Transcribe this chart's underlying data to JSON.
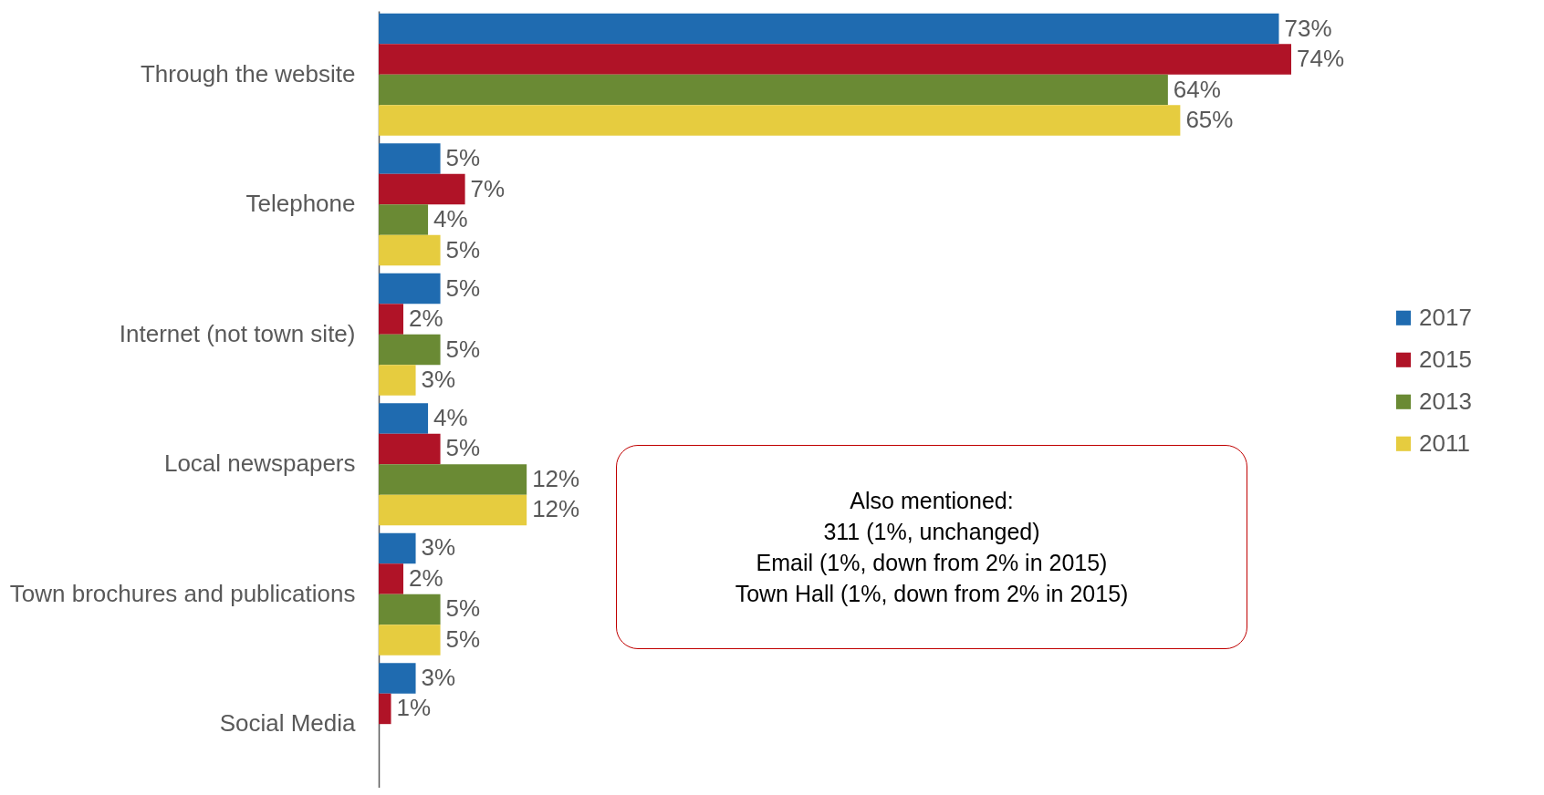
{
  "chart_data": {
    "type": "bar",
    "orientation": "horizontal",
    "categories": [
      "Through the website",
      "Telephone",
      "Internet (not town site)",
      "Local newspapers",
      "Town brochures and publications",
      "Social Media"
    ],
    "series": [
      {
        "name": "2017",
        "color": "#1f6bb0",
        "values": [
          73,
          5,
          5,
          4,
          3,
          3
        ],
        "value_labels": [
          "73%",
          "5%",
          "5%",
          "4%",
          "3%",
          "3%"
        ]
      },
      {
        "name": "2015",
        "color": "#b01327",
        "values": [
          74,
          7,
          2,
          5,
          2,
          1
        ],
        "value_labels": [
          "74%",
          "7%",
          "2%",
          "5%",
          "2%",
          "1%"
        ]
      },
      {
        "name": "2013",
        "color": "#6a8a34",
        "values": [
          64,
          4,
          5,
          12,
          5,
          null
        ],
        "value_labels": [
          "64%",
          "4%",
          "5%",
          "12%",
          "5%",
          null
        ]
      },
      {
        "name": "2011",
        "color": "#e6cc3f",
        "values": [
          65,
          5,
          3,
          12,
          5,
          null
        ],
        "value_labels": [
          "65%",
          "5%",
          "3%",
          "12%",
          "5%",
          null
        ]
      }
    ],
    "legend": "right",
    "annotations": [
      "Also mentioned:",
      "311 (1%, unchanged)",
      "Email (1%, down from 2% in 2015)",
      "Town Hall (1%, down from 2% in 2015)"
    ]
  }
}
